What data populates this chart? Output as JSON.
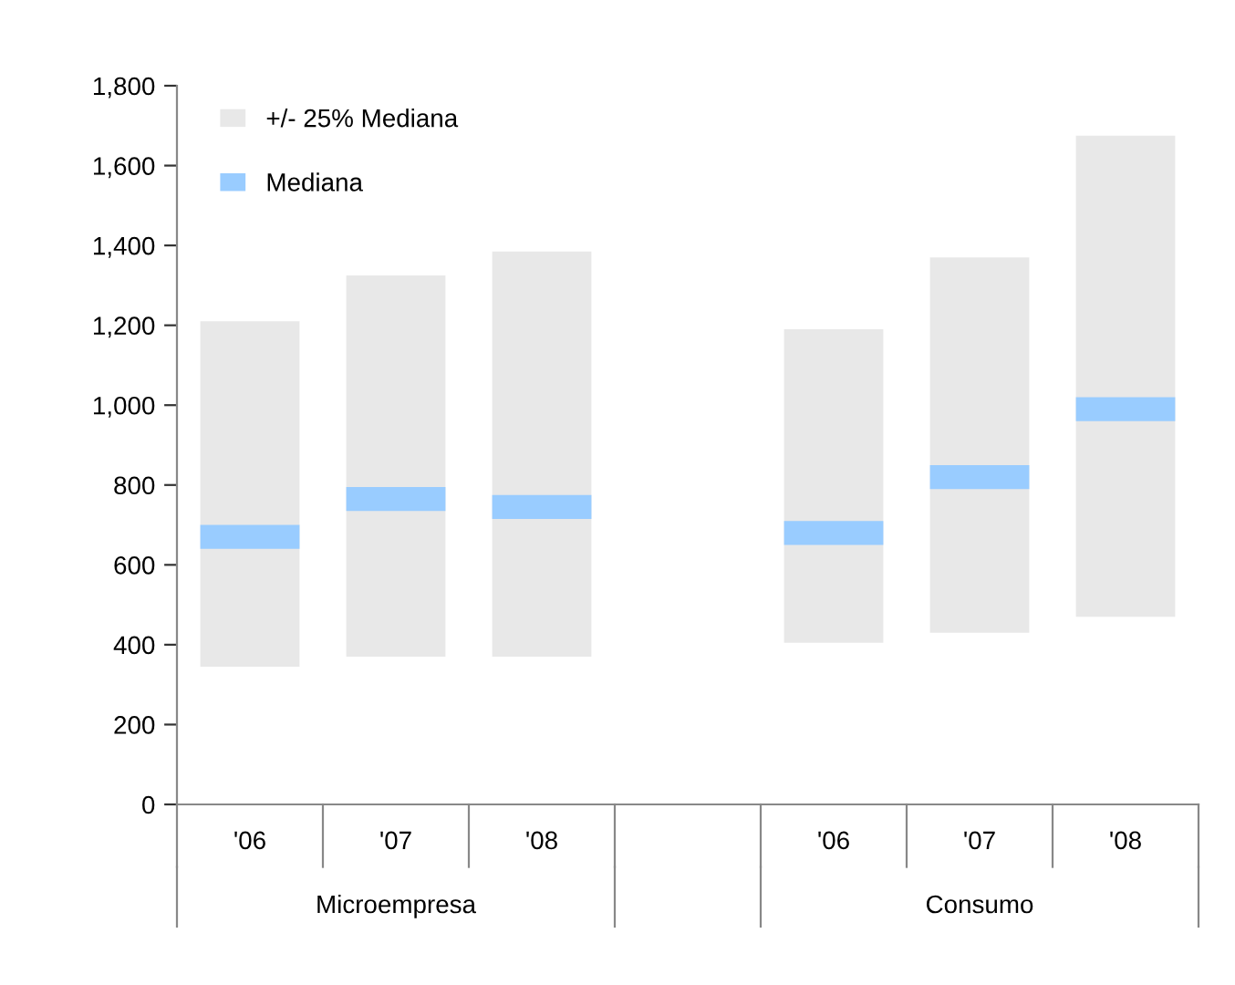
{
  "chart_data": {
    "type": "bar",
    "categories": [
      "'06",
      "'07",
      "'08",
      null,
      "'06",
      "'07",
      "'08"
    ],
    "series": [
      {
        "name": "+/- 25% Mediana",
        "color": "#e8e8e8",
        "base": [
          345,
          370,
          370,
          null,
          405,
          430,
          470
        ],
        "values": [
          865,
          955,
          1015,
          null,
          785,
          940,
          1205
        ]
      },
      {
        "name": "Mediana",
        "color": "#99ccff",
        "base": [
          640,
          735,
          715,
          null,
          650,
          790,
          960
        ],
        "values": [
          60,
          60,
          60,
          null,
          60,
          60,
          60
        ]
      }
    ],
    "annotations": [
      "Microempresa",
      "Consumo"
    ],
    "ylim": [
      0,
      1800
    ],
    "yticks": [
      0,
      {
        "value": 200,
        "label": "200"
      },
      {
        "value": 400,
        "label": "400"
      },
      {
        "value": 600,
        "label": "600"
      },
      {
        "value": 800,
        "label": "800"
      },
      {
        "value": 1000,
        "label": "1,000"
      },
      {
        "value": 1200,
        "label": "1,200"
      },
      {
        "value": 1400,
        "label": "1,400"
      },
      {
        "value": 1600,
        "label": "1,600"
      },
      {
        "value": 1800,
        "label": "1,800"
      }
    ],
    "grid": false,
    "legend": "top left"
  }
}
